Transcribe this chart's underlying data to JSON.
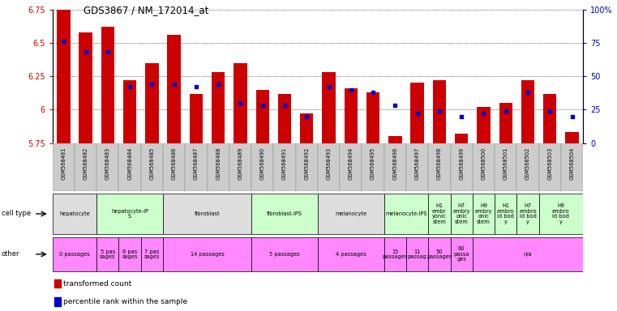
{
  "title": "GDS3867 / NM_172014_at",
  "samples": [
    "GSM568481",
    "GSM568482",
    "GSM568483",
    "GSM568484",
    "GSM568485",
    "GSM568486",
    "GSM568487",
    "GSM568488",
    "GSM568489",
    "GSM568490",
    "GSM568491",
    "GSM568492",
    "GSM568493",
    "GSM568494",
    "GSM568495",
    "GSM568496",
    "GSM568497",
    "GSM568498",
    "GSM568499",
    "GSM568500",
    "GSM568501",
    "GSM568502",
    "GSM568503",
    "GSM568504"
  ],
  "transformed_count": [
    6.75,
    6.58,
    6.62,
    6.22,
    6.35,
    6.56,
    6.12,
    6.28,
    6.35,
    6.15,
    6.12,
    5.97,
    6.28,
    6.16,
    6.13,
    5.8,
    6.2,
    6.22,
    5.82,
    6.02,
    6.05,
    6.22,
    6.12,
    5.83
  ],
  "percentile_rank": [
    76,
    68,
    68,
    42,
    44,
    44,
    42,
    44,
    30,
    28,
    28,
    20,
    42,
    40,
    38,
    28,
    22,
    24,
    20,
    22,
    24,
    38,
    24,
    20
  ],
  "ylim": [
    5.75,
    6.75
  ],
  "yticks": [
    5.75,
    6.0,
    6.25,
    6.5,
    6.75
  ],
  "ytick_labels": [
    "5.75",
    "6",
    "6.25",
    "6.5",
    "6.75"
  ],
  "y2lim": [
    0,
    100
  ],
  "y2ticks": [
    0,
    25,
    50,
    75,
    100
  ],
  "y2tick_labels": [
    "0",
    "25",
    "50",
    "75",
    "100%"
  ],
  "bar_color": "#cc0000",
  "dot_color": "#0000cc",
  "bar_width": 0.6,
  "cell_type_groups": [
    {
      "label": "hepatocyte",
      "start": 0,
      "end": 2,
      "color": "#dddddd"
    },
    {
      "label": "hepatocyte-iP\nS",
      "start": 2,
      "end": 5,
      "color": "#ccffcc"
    },
    {
      "label": "fibroblast",
      "start": 5,
      "end": 9,
      "color": "#dddddd"
    },
    {
      "label": "fibroblast-IPS",
      "start": 9,
      "end": 12,
      "color": "#ccffcc"
    },
    {
      "label": "melanocyte",
      "start": 12,
      "end": 15,
      "color": "#dddddd"
    },
    {
      "label": "melanocyte-IPS",
      "start": 15,
      "end": 17,
      "color": "#ccffcc"
    },
    {
      "label": "H1\nembr\nyonic\nstem",
      "start": 17,
      "end": 18,
      "color": "#ccffcc"
    },
    {
      "label": "H7\nembry\nonic\nstem",
      "start": 18,
      "end": 19,
      "color": "#ccffcc"
    },
    {
      "label": "H9\nembry\nonic\nstem",
      "start": 19,
      "end": 20,
      "color": "#ccffcc"
    },
    {
      "label": "H1\nembro\nid bod\ny",
      "start": 20,
      "end": 21,
      "color": "#ccffcc"
    },
    {
      "label": "H7\nembro\nid bod\ny",
      "start": 21,
      "end": 22,
      "color": "#ccffcc"
    },
    {
      "label": "H9\nembro\nid bod\ny",
      "start": 22,
      "end": 24,
      "color": "#ccffcc"
    }
  ],
  "other_groups": [
    {
      "label": "0 passages",
      "start": 0,
      "end": 2,
      "color": "#ff88ff"
    },
    {
      "label": "5 pas\nsages",
      "start": 2,
      "end": 3,
      "color": "#ff88ff"
    },
    {
      "label": "6 pas\nsages",
      "start": 3,
      "end": 4,
      "color": "#ff88ff"
    },
    {
      "label": "7 pas\nsages",
      "start": 4,
      "end": 5,
      "color": "#ff88ff"
    },
    {
      "label": "14 passages",
      "start": 5,
      "end": 9,
      "color": "#ff88ff"
    },
    {
      "label": "5 passages",
      "start": 9,
      "end": 12,
      "color": "#ff88ff"
    },
    {
      "label": "4 passages",
      "start": 12,
      "end": 15,
      "color": "#ff88ff"
    },
    {
      "label": "15\npassages",
      "start": 15,
      "end": 16,
      "color": "#ff88ff"
    },
    {
      "label": "11\npassag",
      "start": 16,
      "end": 17,
      "color": "#ff88ff"
    },
    {
      "label": "50\npassages",
      "start": 17,
      "end": 18,
      "color": "#ff88ff"
    },
    {
      "label": "60\npassa\nges",
      "start": 18,
      "end": 19,
      "color": "#ff88ff"
    },
    {
      "label": "n/a",
      "start": 19,
      "end": 24,
      "color": "#ff88ff"
    }
  ],
  "cell_type_row_label": "cell type",
  "other_row_label": "other",
  "legend_items": [
    {
      "color": "#cc0000",
      "label": "transformed count"
    },
    {
      "color": "#0000cc",
      "label": "percentile rank within the sample"
    }
  ],
  "sample_bg_color": "#cccccc",
  "fig_bg": "#ffffff"
}
